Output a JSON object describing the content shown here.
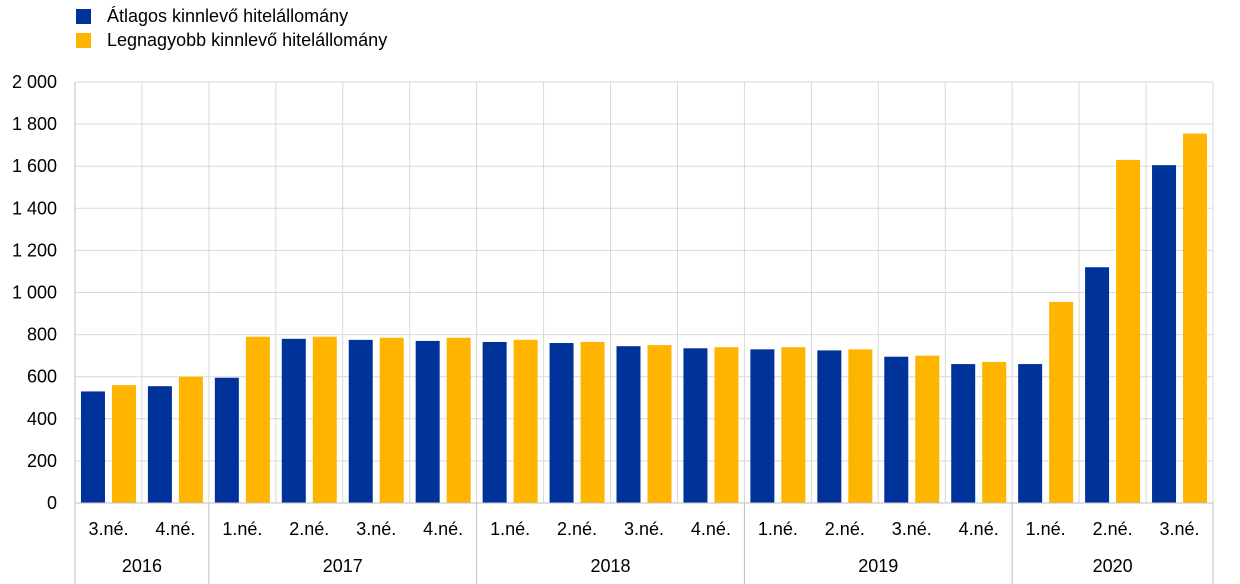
{
  "legend": {
    "items": [
      {
        "label": "Átlagos kinnlevő hitelállomány",
        "color": "#003399"
      },
      {
        "label": "Legnagyobb kinnlevő hitelállomány",
        "color": "#FFB400"
      }
    ]
  },
  "chart_data": {
    "type": "bar",
    "title": "",
    "xlabel": "",
    "ylabel": "",
    "ylim": [
      0,
      2000
    ],
    "yticks": [
      0,
      200,
      400,
      600,
      800,
      1000,
      1200,
      1400,
      1600,
      1800,
      2000
    ],
    "ytick_labels": [
      "0",
      "200",
      "400",
      "600",
      "800",
      "1 000",
      "1 200",
      "1 400",
      "1 600",
      "1 800",
      "2 000"
    ],
    "grid": true,
    "legend_position": "top-left",
    "categories": [
      "3.né.",
      "4.né.",
      "1.né.",
      "2.né.",
      "3.né.",
      "4.né.",
      "1.né.",
      "2.né.",
      "3.né.",
      "4.né.",
      "1.né.",
      "2.né.",
      "3.né.",
      "4.né.",
      "1.né.",
      "2.né.",
      "3.né."
    ],
    "groups": [
      {
        "label": "2016",
        "count": 2
      },
      {
        "label": "2017",
        "count": 4
      },
      {
        "label": "2018",
        "count": 4
      },
      {
        "label": "2019",
        "count": 4
      },
      {
        "label": "2020",
        "count": 3
      }
    ],
    "series": [
      {
        "name": "Átlagos kinnlevő hitelállomány",
        "color": "#003399",
        "values": [
          530,
          555,
          595,
          780,
          775,
          770,
          765,
          760,
          745,
          735,
          730,
          725,
          695,
          660,
          660,
          1120,
          1605
        ]
      },
      {
        "name": "Legnagyobb kinnlevő hitelállomány",
        "color": "#FFB400",
        "values": [
          560,
          600,
          790,
          790,
          785,
          785,
          775,
          765,
          750,
          740,
          740,
          730,
          700,
          670,
          955,
          1630,
          1755
        ]
      }
    ]
  }
}
